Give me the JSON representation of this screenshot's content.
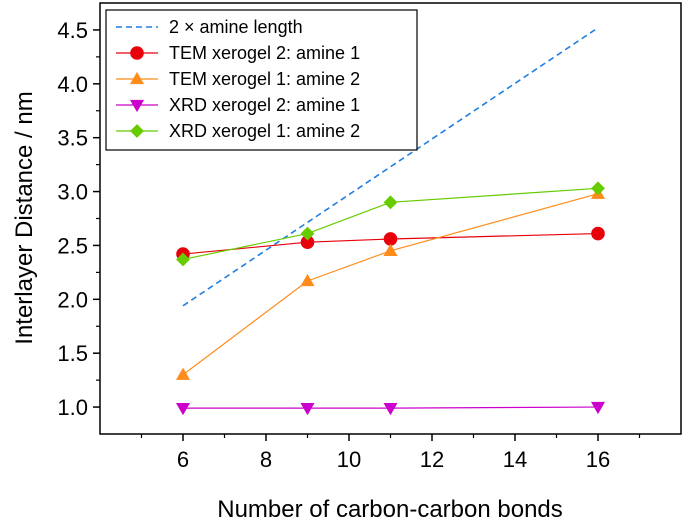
{
  "chart_data": {
    "type": "line",
    "title": "",
    "xlabel": "Number of carbon-carbon bonds",
    "ylabel": "Interlayer Distance / nm",
    "xlim": [
      4,
      18
    ],
    "ylim": [
      0.75,
      4.75
    ],
    "xticks": [
      6,
      8,
      10,
      12,
      14,
      16
    ],
    "yticks": [
      1.0,
      1.5,
      2.0,
      2.5,
      3.0,
      3.5,
      4.0,
      4.5
    ],
    "ytick_labels": [
      "1.0",
      "1.5",
      "2.0",
      "2.5",
      "3.0",
      "3.5",
      "4.0",
      "4.5"
    ],
    "grid": false,
    "legend_position": "top-left",
    "series": [
      {
        "name": "2 × amine length",
        "x": [
          6,
          16
        ],
        "y": [
          1.94,
          4.52
        ],
        "color": "#1f7fe0",
        "marker": "none",
        "dashed": true
      },
      {
        "name": "TEM xerogel 2: amine 1",
        "x": [
          6,
          9,
          11,
          16
        ],
        "y": [
          2.42,
          2.53,
          2.56,
          2.61
        ],
        "color": "#e8000b",
        "marker": "circle",
        "dashed": false
      },
      {
        "name": "TEM xerogel 1: amine 2",
        "x": [
          6,
          9,
          11,
          16
        ],
        "y": [
          1.3,
          2.17,
          2.45,
          2.98
        ],
        "color": "#ff8c1a",
        "marker": "triangle-up",
        "dashed": false
      },
      {
        "name": "XRD xerogel 2: amine 1",
        "x": [
          6,
          9,
          11,
          16
        ],
        "y": [
          0.99,
          0.99,
          0.99,
          1.0
        ],
        "color": "#cc00cc",
        "marker": "triangle-down",
        "dashed": false
      },
      {
        "name": "XRD xerogel 1: amine 2",
        "x": [
          6,
          9,
          11,
          16
        ],
        "y": [
          2.37,
          2.61,
          2.9,
          3.03
        ],
        "color": "#66cc00",
        "marker": "diamond",
        "dashed": false
      }
    ]
  }
}
